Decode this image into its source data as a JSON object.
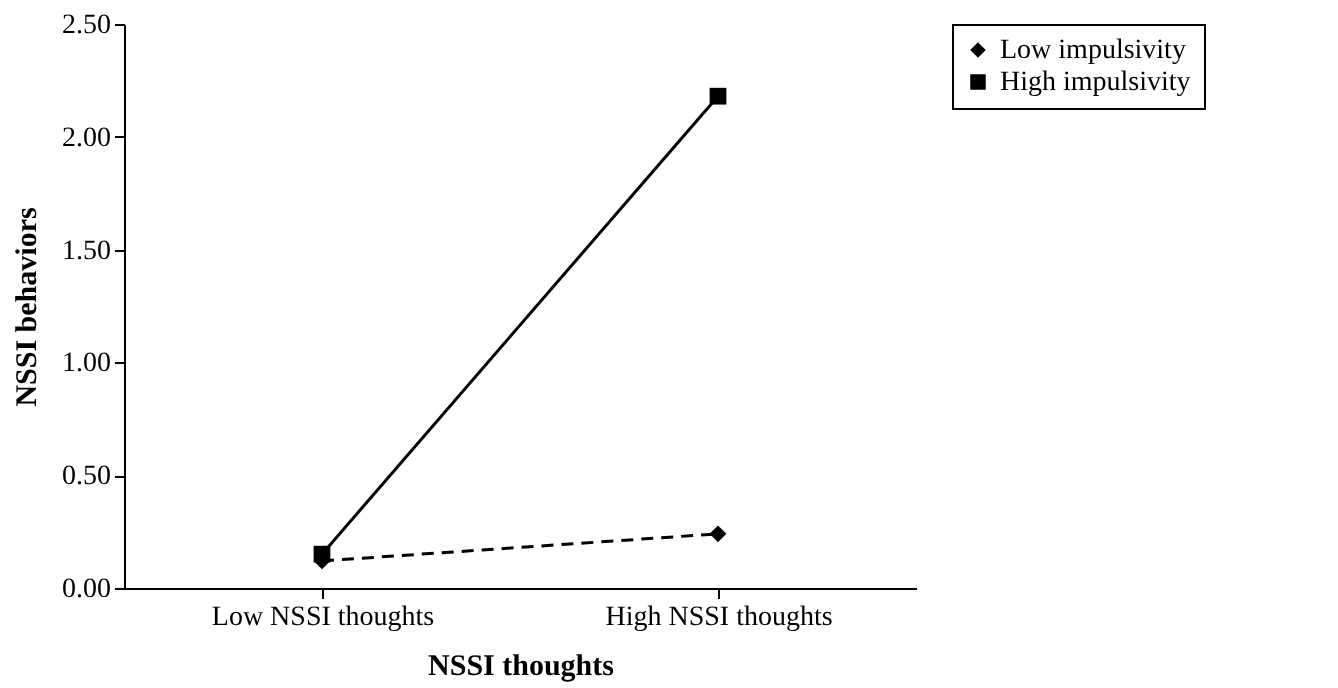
{
  "chart_data": {
    "type": "line",
    "xlabel": "NSSI thoughts",
    "ylabel": "NSSI behaviors",
    "categories": [
      "Low NSSI thoughts",
      "High  NSSI thoughts"
    ],
    "series": [
      {
        "name": "Low impulsivity",
        "color": "#000000",
        "values": [
          0.12,
          0.24
        ],
        "marker": "diamond",
        "line_style": "dashed"
      },
      {
        "name": "High impulsivity",
        "color": "#000000",
        "values": [
          0.15,
          2.18
        ],
        "marker": "square",
        "line_style": "solid"
      }
    ],
    "ylim": [
      0,
      2.5
    ],
    "yticks": [
      {
        "value": 0,
        "label": "0.00"
      },
      {
        "value": 0.5,
        "label": "0.50"
      },
      {
        "value": 1,
        "label": "1.00"
      },
      {
        "value": 1.5,
        "label": "1.50"
      },
      {
        "value": 2,
        "label": "2.00"
      },
      {
        "value": 2.5,
        "label": "2.50"
      }
    ],
    "grid": false,
    "legend": "top right"
  }
}
